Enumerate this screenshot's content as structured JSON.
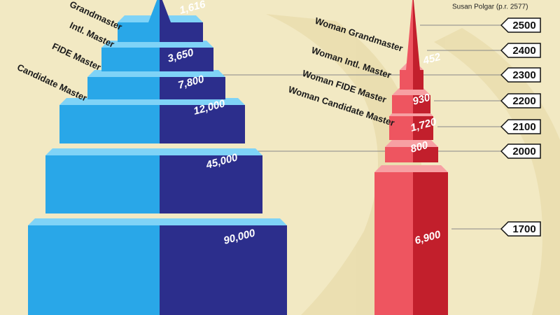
{
  "annotation": "Susan Polgar (p.r. 2577)",
  "left_tower": {
    "tiers": [
      {
        "title": "Grandmaster",
        "count": "1,616"
      },
      {
        "title": "Intl. Master",
        "count": "3,650"
      },
      {
        "title": "FIDE Master",
        "count": "7,800"
      },
      {
        "title": "Candidate Master",
        "count": "12,000"
      },
      {
        "count": "45,000"
      },
      {
        "count": "90,000"
      }
    ]
  },
  "right_tower": {
    "tiers": [
      {
        "title": "Woman Grandmaster",
        "count": "452"
      },
      {
        "title": "Woman Intl. Master",
        "count": "930"
      },
      {
        "title": "Woman FIDE Master",
        "count": "1,720"
      },
      {
        "title": "Woman Candidate Master",
        "count": "800"
      },
      {
        "count": "6,900"
      }
    ]
  },
  "rating_scale": [
    "2500",
    "2400",
    "2300",
    "2200",
    "2100",
    "2000",
    "1700"
  ]
}
